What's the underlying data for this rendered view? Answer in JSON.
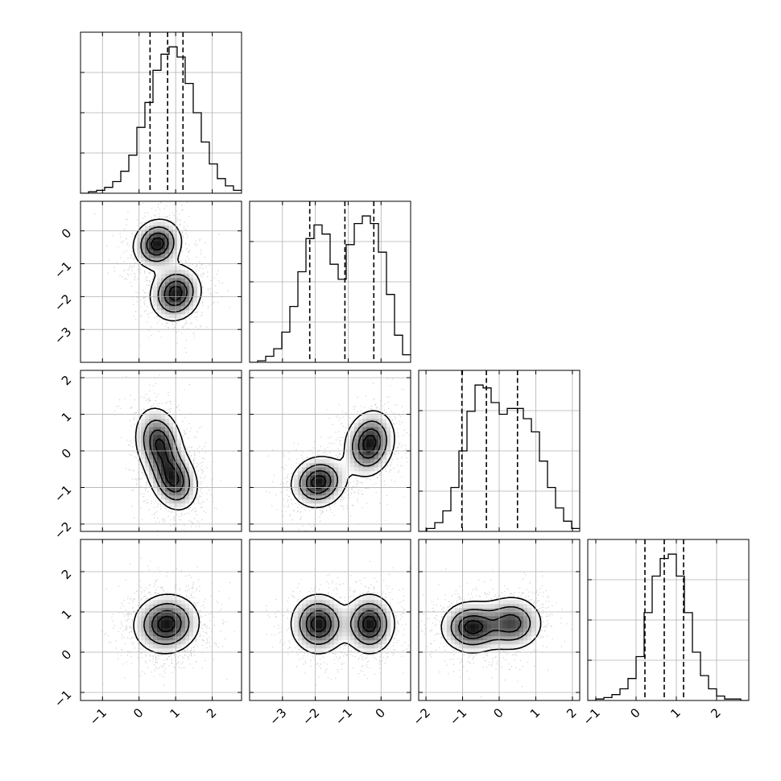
{
  "chart_data": {
    "type": "corner",
    "ndim": 4,
    "grid": true,
    "ranges": [
      [
        -1.6,
        2.8
      ],
      [
        -4.0,
        0.9
      ],
      [
        -2.2,
        2.2
      ],
      [
        -1.2,
        2.8
      ]
    ],
    "ticks": [
      [
        -1,
        0,
        1,
        2
      ],
      [
        -3,
        -2,
        -1,
        0
      ],
      [
        -2,
        -1,
        0,
        1,
        2
      ],
      [
        -1,
        0,
        1,
        2
      ]
    ],
    "tick_labels": [
      [
        "-1",
        "0",
        "1",
        "2"
      ],
      [
        "-3",
        "-2",
        "-1",
        "0"
      ],
      [
        "-2",
        "-1",
        "0",
        "1",
        "2"
      ],
      [
        "-1",
        "0",
        "1",
        "2"
      ]
    ],
    "quantiles": [
      [
        0.3,
        0.78,
        1.2
      ],
      [
        -2.17,
        -1.1,
        -0.22
      ],
      [
        -1.02,
        -0.35,
        0.5
      ],
      [
        0.22,
        0.7,
        1.18
      ]
    ],
    "histograms": [
      {
        "edges_start": -1.6,
        "bin_width": 0.22,
        "counts": [
          0,
          1,
          2,
          4,
          8,
          15,
          26,
          45,
          62,
          84,
          95,
          100,
          93,
          75,
          55,
          35,
          20,
          10,
          5,
          2
        ]
      },
      {
        "edges_start": -4.0,
        "bin_width": 0.245,
        "counts": [
          0,
          1,
          4,
          9,
          20,
          37,
          60,
          82,
          91,
          85,
          65,
          55,
          78,
          92,
          97,
          92,
          73,
          45,
          18,
          5
        ]
      },
      {
        "edges_start": -2.2,
        "bin_width": 0.22,
        "counts": [
          0,
          2,
          6,
          14,
          30,
          55,
          82,
          100,
          98,
          88,
          80,
          84,
          84,
          77,
          68,
          48,
          30,
          16,
          7,
          2
        ]
      },
      {
        "edges_start": -1.2,
        "bin_width": 0.2,
        "counts": [
          0,
          1,
          2,
          4,
          8,
          15,
          30,
          60,
          85,
          97,
          100,
          85,
          60,
          33,
          17,
          8,
          3,
          1,
          1,
          0
        ]
      }
    ],
    "panels": [
      {
        "row": 1,
        "col": 0,
        "blobs": [
          {
            "cx": 0.5,
            "cy": -0.4,
            "sx": 0.33,
            "sy": 0.38,
            "rho": 0.1,
            "w": 1
          },
          {
            "cx": 1.0,
            "cy": -1.9,
            "sx": 0.35,
            "sy": 0.42,
            "rho": 0.1,
            "w": 1
          }
        ]
      },
      {
        "row": 2,
        "col": 0,
        "blobs": [
          {
            "cx": 0.55,
            "cy": 0.2,
            "sx": 0.33,
            "sy": 0.5,
            "rho": -0.2,
            "w": 1
          },
          {
            "cx": 0.95,
            "cy": -0.8,
            "sx": 0.33,
            "sy": 0.42,
            "rho": -0.2,
            "w": 1
          }
        ]
      },
      {
        "row": 2,
        "col": 1,
        "blobs": [
          {
            "cx": -1.9,
            "cy": -0.85,
            "sx": 0.42,
            "sy": 0.35,
            "rho": 0.1,
            "w": 1
          },
          {
            "cx": -0.35,
            "cy": 0.2,
            "sx": 0.38,
            "sy": 0.45,
            "rho": 0.15,
            "w": 1
          }
        ]
      },
      {
        "row": 3,
        "col": 0,
        "blobs": [
          {
            "cx": 0.75,
            "cy": 0.7,
            "sx": 0.45,
            "sy": 0.37,
            "rho": 0.05,
            "w": 1
          }
        ]
      },
      {
        "row": 3,
        "col": 1,
        "blobs": [
          {
            "cx": -1.9,
            "cy": 0.7,
            "sx": 0.42,
            "sy": 0.37,
            "rho": 0.0,
            "w": 1
          },
          {
            "cx": -0.35,
            "cy": 0.7,
            "sx": 0.38,
            "sy": 0.37,
            "rho": 0.0,
            "w": 1
          }
        ]
      },
      {
        "row": 3,
        "col": 2,
        "blobs": [
          {
            "cx": -0.75,
            "cy": 0.62,
            "sx": 0.42,
            "sy": 0.32,
            "rho": 0.0,
            "w": 1.1
          },
          {
            "cx": 0.35,
            "cy": 0.72,
            "sx": 0.42,
            "sy": 0.34,
            "rho": 0.0,
            "w": 0.9
          }
        ]
      }
    ]
  }
}
